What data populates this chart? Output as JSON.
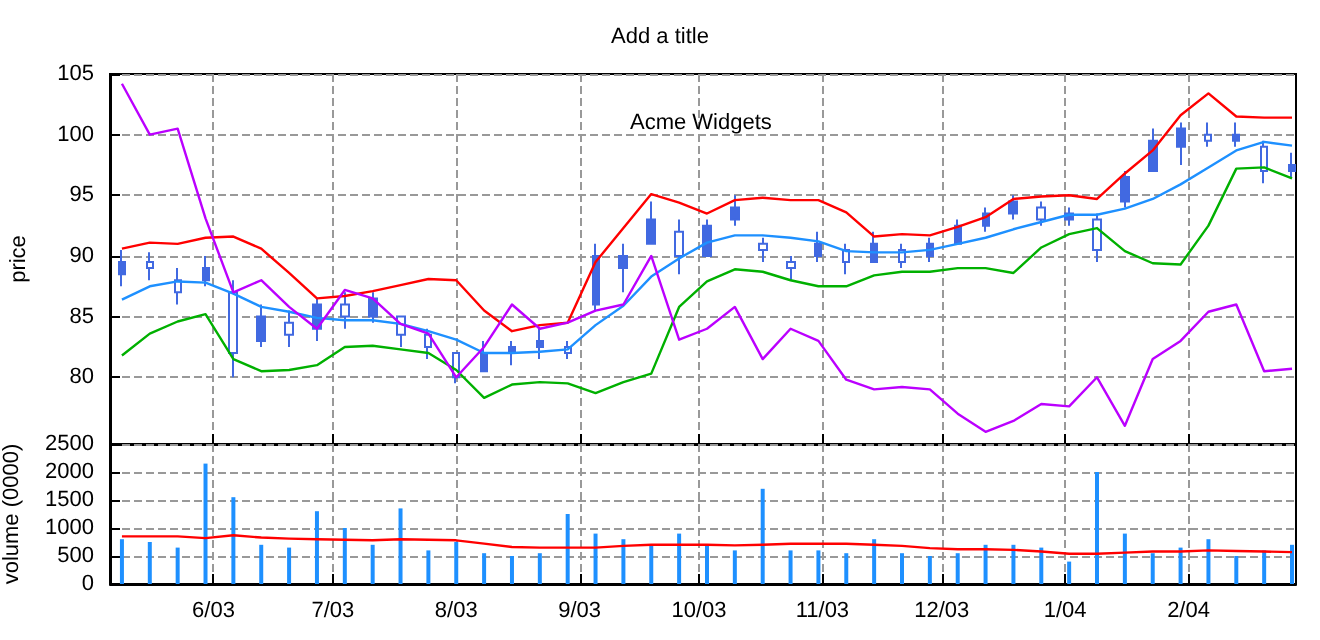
{
  "chart_data": [
    {
      "type": "candlestick",
      "title": "Add a title",
      "ylabel": "price",
      "annotations": [
        "Acme Widgets"
      ],
      "tick_labels": "y",
      "grid": true,
      "marker": "none",
      "color": "#4169e1",
      "x": [
        "2003-05-09",
        "2003-05-16",
        "2003-05-23",
        "2003-05-30",
        "2003-06-06",
        "2003-06-13",
        "2003-06-20",
        "2003-06-27",
        "2003-07-04",
        "2003-07-11",
        "2003-07-18",
        "2003-07-25",
        "2003-08-01",
        "2003-08-08",
        "2003-08-15",
        "2003-08-22",
        "2003-08-29",
        "2003-09-05",
        "2003-09-12",
        "2003-09-19",
        "2003-09-26",
        "2003-10-03",
        "2003-10-10",
        "2003-10-17",
        "2003-10-24",
        "2003-10-31",
        "2003-11-07",
        "2003-11-14",
        "2003-11-21",
        "2003-11-28",
        "2003-12-05",
        "2003-12-12",
        "2003-12-19",
        "2003-12-26",
        "2004-01-02",
        "2004-01-09",
        "2004-01-16",
        "2004-01-23",
        "2004-01-30",
        "2004-02-06",
        "2004-02-13",
        "2004-02-20",
        "2004-02-27"
      ],
      "xlim": [
        "2003-05-06",
        "2004-02-28"
      ],
      "xticks": [
        {
          "value": "2003-06-01",
          "label": null
        },
        {
          "value": "2003-07-01",
          "label": null
        },
        {
          "value": "2003-08-01",
          "label": null
        },
        {
          "value": "2003-09-01",
          "label": null
        },
        {
          "value": "2003-10-01",
          "label": null
        },
        {
          "value": "2003-11-01",
          "label": null
        },
        {
          "value": "2003-12-01",
          "label": null
        },
        {
          "value": "2004-01-01",
          "label": null
        },
        {
          "value": "2004-02-01",
          "label": null
        }
      ],
      "ylim": [
        74.5,
        105
      ],
      "yticks": [
        80,
        85,
        90,
        95,
        100,
        105
      ],
      "ohlc": [
        [
          88.5,
          90.5,
          87.5,
          89.5
        ],
        [
          89.5,
          90.3,
          88,
          89
        ],
        [
          88,
          89,
          86,
          87
        ],
        [
          88,
          90,
          87.5,
          89
        ],
        [
          87,
          88,
          80,
          82
        ],
        [
          83,
          86,
          82.5,
          85
        ],
        [
          84.5,
          85.5,
          82.5,
          83.5
        ],
        [
          84,
          86.5,
          83,
          86
        ],
        [
          86,
          87,
          84,
          85
        ],
        [
          85,
          87,
          84.5,
          86.5
        ],
        [
          85,
          85,
          82.5,
          83.5
        ],
        [
          83.5,
          84,
          81.5,
          82.5
        ],
        [
          82,
          82,
          79.5,
          80
        ],
        [
          80.5,
          83,
          80.5,
          82
        ],
        [
          82,
          83,
          81,
          82.5
        ],
        [
          82.5,
          84,
          81.5,
          83
        ],
        [
          82.5,
          83,
          81.5,
          82
        ],
        [
          86,
          91,
          85.5,
          90
        ],
        [
          89,
          91,
          87,
          90
        ],
        [
          91,
          94.5,
          91,
          93
        ],
        [
          92,
          93,
          88.5,
          90
        ],
        [
          90,
          93,
          90,
          92.5
        ],
        [
          93,
          95,
          92.5,
          94
        ],
        [
          91,
          91.5,
          89.5,
          90.5
        ],
        [
          89.5,
          90,
          88,
          89
        ],
        [
          90,
          92,
          89.5,
          91
        ],
        [
          90.5,
          91,
          88.5,
          89.5
        ],
        [
          89.5,
          92,
          89.5,
          91
        ],
        [
          90.5,
          91,
          89,
          89.5
        ],
        [
          90,
          91.5,
          89.5,
          91
        ],
        [
          91,
          93,
          91,
          92.5
        ],
        [
          92.5,
          94,
          92,
          93.5
        ],
        [
          93.5,
          95,
          93,
          94.5
        ],
        [
          94,
          94.5,
          92.5,
          93
        ],
        [
          93,
          94,
          92.5,
          93.5
        ],
        [
          93,
          93.5,
          89.5,
          90.5
        ],
        [
          94.5,
          97,
          94,
          96.5
        ],
        [
          97,
          100.5,
          97,
          99.5
        ],
        [
          99,
          101,
          97.5,
          100.5
        ],
        [
          100,
          101,
          99,
          99.5
        ],
        [
          99.5,
          101,
          99,
          100
        ],
        [
          99,
          99.5,
          96,
          97
        ],
        [
          97,
          98.5,
          96.5,
          97.5
        ]
      ],
      "series": [
        {
          "type": "line",
          "color": "#ff0000",
          "values": [
            90.6,
            91.1,
            91.0,
            91.5,
            91.6,
            90.6,
            88.6,
            86.5,
            86.7,
            87.1,
            87.6,
            88.1,
            88.0,
            85.5,
            83.8,
            84.3,
            84.5,
            89.5,
            92.3,
            95.1,
            94.4,
            93.5,
            94.6,
            94.8,
            94.6,
            94.6,
            93.6,
            91.6,
            91.8,
            91.7,
            92.4,
            93.2,
            94.7,
            94.9,
            95.0,
            94.7,
            96.8,
            98.7,
            101.6,
            103.4,
            101.5,
            101.4,
            101.4
          ]
        },
        {
          "type": "line",
          "color": "#1e90ff",
          "values": [
            86.4,
            87.5,
            87.9,
            87.8,
            86.9,
            85.8,
            85.4,
            84.9,
            84.7,
            84.7,
            84.4,
            83.8,
            83.1,
            82.0,
            82.0,
            82.1,
            82.3,
            84.3,
            85.9,
            88.3,
            89.8,
            91.1,
            91.7,
            91.7,
            91.5,
            91.2,
            90.4,
            90.3,
            90.3,
            90.5,
            91.0,
            91.5,
            92.2,
            92.8,
            93.4,
            93.4,
            93.9,
            94.7,
            95.9,
            97.3,
            98.7,
            99.4,
            99.1
          ]
        },
        {
          "type": "line",
          "color": "#00b000",
          "values": [
            81.8,
            83.6,
            84.6,
            85.2,
            81.5,
            80.5,
            80.6,
            81.0,
            82.5,
            82.6,
            82.3,
            82.0,
            80.6,
            78.3,
            79.4,
            79.6,
            79.5,
            78.7,
            79.6,
            80.3,
            85.8,
            87.9,
            88.9,
            88.7,
            88.0,
            87.5,
            87.5,
            88.4,
            88.7,
            88.7,
            89.0,
            89.0,
            88.6,
            90.7,
            91.8,
            92.3,
            90.4,
            89.4,
            89.3,
            92.5,
            97.2,
            97.3,
            96.4
          ]
        },
        {
          "type": "line",
          "color": "#bb00ff",
          "values": [
            104.2,
            100,
            100.5,
            93.1,
            87.0,
            88.0,
            85.8,
            84.0,
            87.2,
            86.5,
            84.4,
            83.6,
            80.0,
            82.5,
            86.0,
            84.0,
            84.5,
            85.5,
            86.0,
            90.0,
            83.1,
            84.0,
            85.8,
            81.5,
            84.0,
            83.0,
            79.8,
            79.0,
            79.2,
            79.0,
            77.0,
            75.5,
            76.4,
            77.8,
            77.6,
            80.0,
            76.0,
            81.5,
            83.0,
            85.4,
            86.0,
            80.5,
            80.7
          ]
        }
      ]
    },
    {
      "type": "bar",
      "ylabel": "volume (0000)",
      "grid": true,
      "marker": "none",
      "x": [
        "2003-05-09",
        "2003-05-16",
        "2003-05-23",
        "2003-05-30",
        "2003-06-06",
        "2003-06-13",
        "2003-06-20",
        "2003-06-27",
        "2003-07-04",
        "2003-07-11",
        "2003-07-18",
        "2003-07-25",
        "2003-08-01",
        "2003-08-08",
        "2003-08-15",
        "2003-08-22",
        "2003-08-29",
        "2003-09-05",
        "2003-09-12",
        "2003-09-19",
        "2003-09-26",
        "2003-10-03",
        "2003-10-10",
        "2003-10-17",
        "2003-10-24",
        "2003-10-31",
        "2003-11-07",
        "2003-11-14",
        "2003-11-21",
        "2003-11-28",
        "2003-12-05",
        "2003-12-12",
        "2003-12-19",
        "2003-12-26",
        "2004-01-02",
        "2004-01-09",
        "2004-01-16",
        "2004-01-23",
        "2004-01-30",
        "2004-02-06",
        "2004-02-13",
        "2004-02-20",
        "2004-02-27"
      ],
      "xlim": [
        "2003-05-06",
        "2004-02-28"
      ],
      "xticks": [
        {
          "value": "2003-06-01",
          "label": "6/03"
        },
        {
          "value": "2003-07-01",
          "label": "7/03"
        },
        {
          "value": "2003-08-01",
          "label": "8/03"
        },
        {
          "value": "2003-09-01",
          "label": "9/03"
        },
        {
          "value": "2003-10-01",
          "label": "10/03"
        },
        {
          "value": "2003-11-01",
          "label": "11/03"
        },
        {
          "value": "2003-12-01",
          "label": "12/03"
        },
        {
          "value": "2004-01-01",
          "label": "1/04"
        },
        {
          "value": "2004-02-01",
          "label": "2/04"
        }
      ],
      "ylim": [
        0,
        2500
      ],
      "yticks": [
        0,
        500,
        1000,
        1500,
        2000,
        2500
      ],
      "series": [
        {
          "color": "#1e90ff",
          "values": [
            800,
            750,
            650,
            2150,
            1550,
            700,
            650,
            1300,
            1000,
            700,
            1350,
            600,
            750,
            550,
            500,
            550,
            1250,
            900,
            800,
            700,
            900,
            700,
            600,
            1700,
            600,
            600,
            550,
            800,
            550,
            500,
            550,
            700,
            700,
            650,
            400,
            2000,
            900,
            550,
            650,
            800,
            500,
            600,
            700
          ]
        },
        {
          "type": "line",
          "color": "#ff0000",
          "values": [
            850,
            850,
            850,
            820,
            870,
            830,
            810,
            800,
            790,
            780,
            800,
            790,
            780,
            720,
            660,
            650,
            650,
            650,
            680,
            700,
            700,
            700,
            690,
            700,
            720,
            720,
            720,
            700,
            680,
            640,
            620,
            620,
            610,
            580,
            540,
            540,
            560,
            580,
            580,
            600,
            590,
            580,
            570
          ]
        }
      ]
    }
  ]
}
